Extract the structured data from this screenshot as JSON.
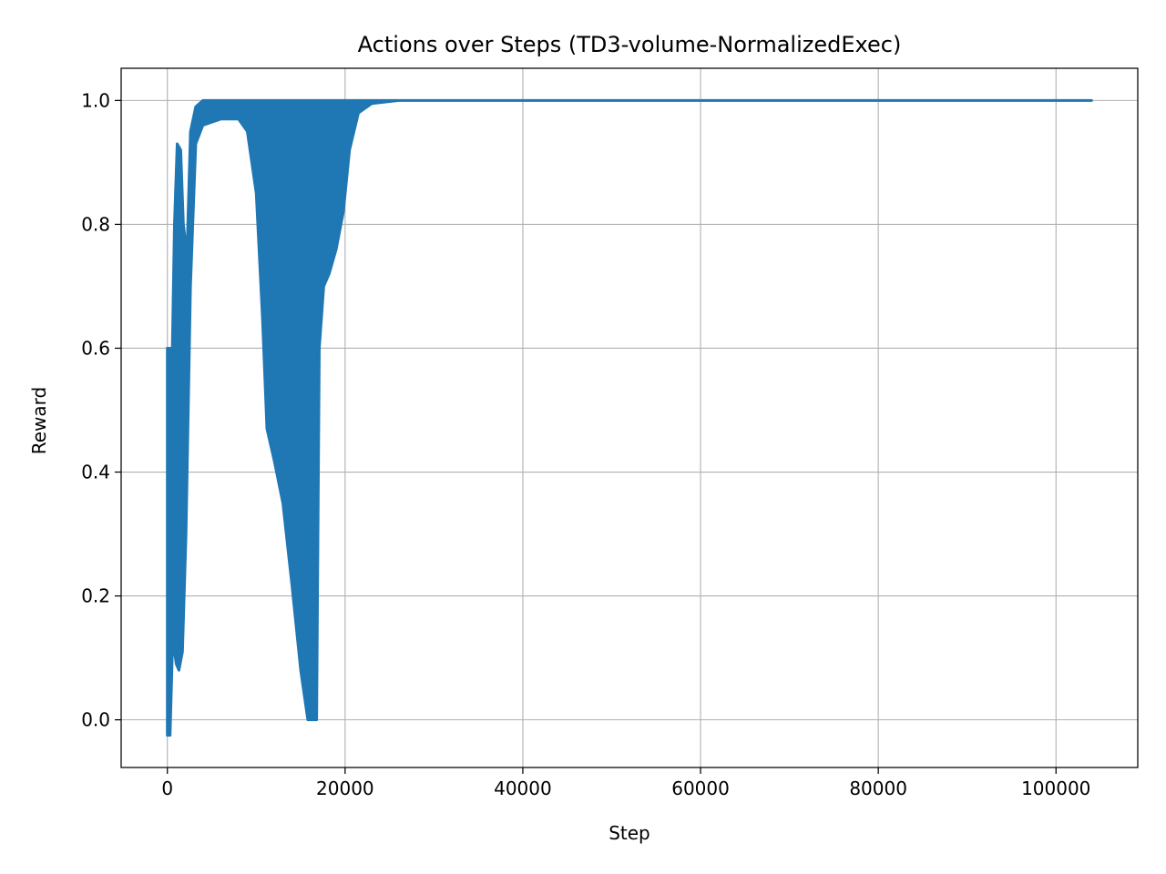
{
  "chart_data": {
    "type": "line",
    "title": "Actions over Steps (TD3-volume-NormalizedExec)",
    "xlabel": "Step",
    "ylabel": "Reward",
    "xlim": [
      -5200,
      109200
    ],
    "ylim": [
      -0.077,
      1.052
    ],
    "grid": true,
    "series_color": "#1f77b4",
    "x_ticks": [
      {
        "value": 0,
        "label": "0"
      },
      {
        "value": 20000,
        "label": "20000"
      },
      {
        "value": 40000,
        "label": "40000"
      },
      {
        "value": 60000,
        "label": "60000"
      },
      {
        "value": 80000,
        "label": "80000"
      },
      {
        "value": 100000,
        "label": "100000"
      }
    ],
    "y_ticks": [
      {
        "value": 0.0,
        "label": "0.0"
      },
      {
        "value": 0.2,
        "label": "0.2"
      },
      {
        "value": 0.4,
        "label": "0.4"
      },
      {
        "value": 0.6,
        "label": "0.6"
      },
      {
        "value": 0.8,
        "label": "0.8"
      },
      {
        "value": 1.0,
        "label": "1.0"
      }
    ],
    "series": [
      {
        "band_upper": [
          [
            0,
            0.6
          ],
          [
            300,
            0.6
          ],
          [
            500,
            0.55
          ],
          [
            800,
            0.8
          ],
          [
            1100,
            0.93
          ],
          [
            1500,
            0.92
          ],
          [
            1800,
            0.8
          ],
          [
            2200,
            0.75
          ],
          [
            2600,
            0.95
          ],
          [
            3200,
            0.99
          ],
          [
            4000,
            1.0
          ],
          [
            10000,
            1.0
          ],
          [
            20000,
            1.0
          ],
          [
            25000,
            1.0
          ],
          [
            30000,
            1.0
          ],
          [
            104000,
            1.0
          ]
        ],
        "band_lower": [
          [
            0,
            -0.025
          ],
          [
            300,
            -0.025
          ],
          [
            600,
            0.13
          ],
          [
            1000,
            0.09
          ],
          [
            1300,
            0.08
          ],
          [
            1700,
            0.11
          ],
          [
            2100,
            0.3
          ],
          [
            2600,
            0.7
          ],
          [
            3200,
            0.93
          ],
          [
            4000,
            0.96
          ],
          [
            6000,
            0.97
          ],
          [
            8000,
            0.97
          ],
          [
            9000,
            0.95
          ],
          [
            10000,
            0.85
          ],
          [
            10700,
            0.65
          ],
          [
            11200,
            0.47
          ],
          [
            12000,
            0.42
          ],
          [
            13000,
            0.35
          ],
          [
            14000,
            0.22
          ],
          [
            15000,
            0.08
          ],
          [
            15800,
            0.0
          ],
          [
            16800,
            0.0
          ],
          [
            17100,
            0.6
          ],
          [
            17600,
            0.7
          ],
          [
            18200,
            0.72
          ],
          [
            19000,
            0.76
          ],
          [
            19800,
            0.82
          ],
          [
            20500,
            0.92
          ],
          [
            21500,
            0.98
          ],
          [
            23000,
            0.995
          ],
          [
            26000,
            1.0
          ],
          [
            30000,
            1.0
          ],
          [
            104000,
            1.0
          ]
        ]
      }
    ]
  }
}
